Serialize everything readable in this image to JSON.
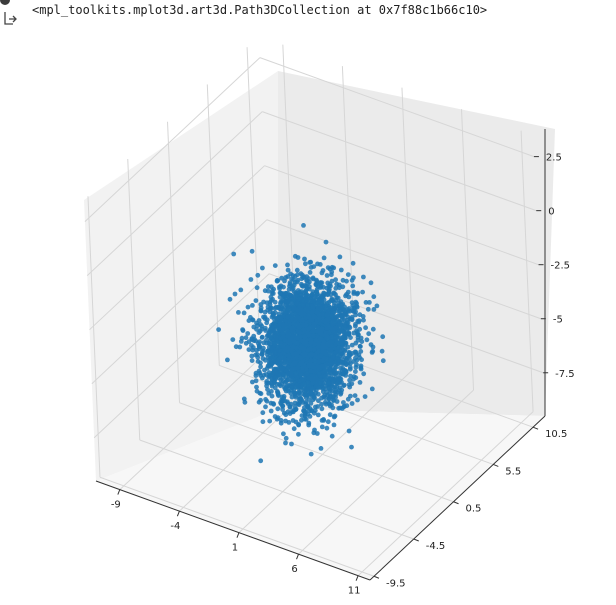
{
  "output": {
    "repr_text": "<mpl_toolkits.mplot3d.art3d.Path3DCollection at 0x7f88c1b66c10>",
    "icon": "output-arrow-icon"
  },
  "colors": {
    "points": "#1f77b4",
    "pane_left": "#f2f2f2",
    "pane_back": "#ebebeb",
    "pane_floor": "#f7f7f7",
    "grid": "#d6d6d6"
  },
  "chart_data": {
    "type": "scatter",
    "title": "",
    "xlabel": "",
    "ylabel": "",
    "zlabel": "",
    "x_ticks": [
      "-9",
      "-4",
      "1",
      "6",
      "11"
    ],
    "y_ticks": [
      "-9.5",
      "-4.5",
      "0.5",
      "5.5",
      "10.5"
    ],
    "z_ticks": [
      "2.5",
      "0",
      "-2.5",
      "-5",
      "-7.5"
    ],
    "xlim": [
      -11,
      12
    ],
    "ylim": [
      -10,
      12
    ],
    "zlim": [
      -9.5,
      3.5
    ],
    "grid": true,
    "cloud": {
      "x_mean": 0.5,
      "x_std": 1.6,
      "y_mean": 0.0,
      "y_std": 1.7,
      "z_mean": -4.3,
      "z_std": 1.2
    }
  }
}
